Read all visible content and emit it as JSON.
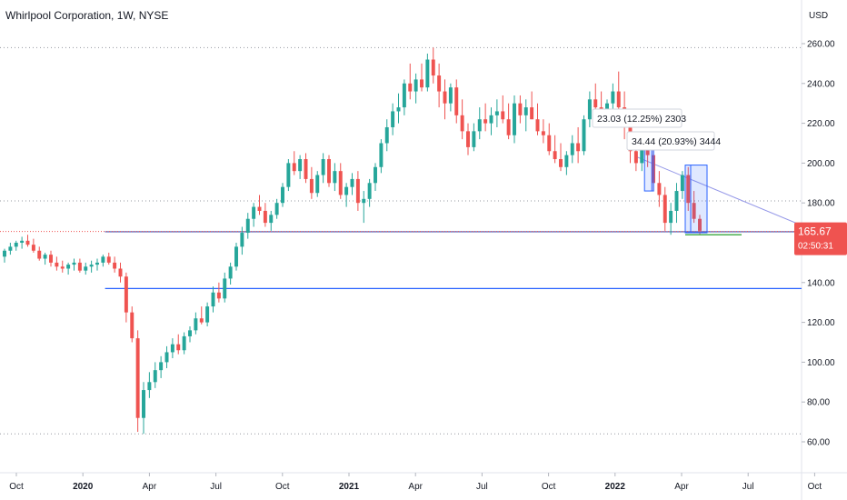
{
  "title": "Whirlpool Corporation, 1W, NYSE",
  "currency": "USD",
  "chart_data": {
    "type": "candlestick",
    "y_ticks": [
      "60.00",
      "80.00",
      "100.00",
      "120.00",
      "140.00",
      "160.00",
      "180.00",
      "200.00",
      "220.00",
      "240.00",
      "260.00"
    ],
    "x_ticks": [
      "Oct",
      "2020",
      "Apr",
      "Jul",
      "Oct",
      "2021",
      "Apr",
      "Jul",
      "Oct",
      "2022",
      "Apr",
      "Jul",
      "Oct"
    ],
    "ylim": [
      45,
      265
    ],
    "current_price": "165.67",
    "countdown": "02:50:31",
    "colors": {
      "up": "#26a69a",
      "down": "#ef5350",
      "support": "#3f51b5",
      "trend": "#9598e8",
      "measure": "#2962ff",
      "green_line": "#4caf50",
      "dotted": "#9598a1"
    },
    "horizontal_lines": [
      {
        "price": 165.5,
        "from": "2020-02",
        "color": "#3f51b5",
        "style": "solid"
      },
      {
        "price": 137,
        "from": "2020-02",
        "color": "#2962ff",
        "style": "solid"
      },
      {
        "price": 258,
        "style": "dotted"
      },
      {
        "price": 181,
        "style": "dotted"
      },
      {
        "price": 64,
        "style": "dotted"
      }
    ],
    "trend_line": {
      "from": {
        "date": "2022-02",
        "price": 203
      },
      "to": {
        "date": "2022-10",
        "price": 166
      }
    },
    "annotations": [
      {
        "text": "23.03 (12.25%) 2303"
      },
      {
        "text": "34.44 (20.93%) 3444"
      }
    ],
    "candles": [
      [
        153,
        157,
        150,
        156
      ],
      [
        156,
        160,
        154,
        158
      ],
      [
        158,
        161,
        156,
        160
      ],
      [
        160,
        163,
        157,
        161
      ],
      [
        161,
        164,
        158,
        159
      ],
      [
        159,
        162,
        155,
        156
      ],
      [
        156,
        158,
        151,
        152
      ],
      [
        152,
        155,
        149,
        154
      ],
      [
        154,
        156,
        148,
        150
      ],
      [
        150,
        153,
        146,
        148
      ],
      [
        148,
        151,
        145,
        147
      ],
      [
        147,
        150,
        144,
        149
      ],
      [
        149,
        152,
        146,
        150
      ],
      [
        150,
        152,
        145,
        146
      ],
      [
        146,
        150,
        144,
        148
      ],
      [
        148,
        151,
        145,
        149
      ],
      [
        149,
        152,
        146,
        150
      ],
      [
        150,
        154,
        148,
        153
      ],
      [
        153,
        155,
        149,
        150
      ],
      [
        150,
        153,
        145,
        147
      ],
      [
        147,
        150,
        140,
        143
      ],
      [
        143,
        145,
        120,
        125
      ],
      [
        125,
        128,
        110,
        112
      ],
      [
        112,
        116,
        65,
        72
      ],
      [
        72,
        90,
        64,
        86
      ],
      [
        86,
        95,
        82,
        90
      ],
      [
        90,
        100,
        87,
        96
      ],
      [
        96,
        103,
        92,
        100
      ],
      [
        100,
        108,
        97,
        105
      ],
      [
        105,
        112,
        102,
        109
      ],
      [
        109,
        114,
        104,
        106
      ],
      [
        106,
        115,
        104,
        113
      ],
      [
        113,
        118,
        110,
        116
      ],
      [
        116,
        125,
        114,
        122
      ],
      [
        122,
        128,
        119,
        120
      ],
      [
        120,
        130,
        118,
        128
      ],
      [
        128,
        138,
        125,
        135
      ],
      [
        135,
        140,
        130,
        132
      ],
      [
        132,
        145,
        130,
        142
      ],
      [
        142,
        150,
        139,
        148
      ],
      [
        148,
        160,
        146,
        158
      ],
      [
        158,
        168,
        154,
        165
      ],
      [
        165,
        175,
        162,
        172
      ],
      [
        172,
        180,
        168,
        178
      ],
      [
        178,
        184,
        174,
        176
      ],
      [
        176,
        180,
        168,
        170
      ],
      [
        170,
        176,
        166,
        174
      ],
      [
        174,
        182,
        172,
        180
      ],
      [
        180,
        190,
        178,
        188
      ],
      [
        188,
        202,
        186,
        200
      ],
      [
        200,
        206,
        194,
        196
      ],
      [
        196,
        204,
        192,
        202
      ],
      [
        202,
        205,
        190,
        192
      ],
      [
        192,
        198,
        182,
        185
      ],
      [
        185,
        196,
        183,
        194
      ],
      [
        194,
        205,
        190,
        202
      ],
      [
        202,
        204,
        188,
        190
      ],
      [
        190,
        200,
        186,
        196
      ],
      [
        196,
        200,
        182,
        184
      ],
      [
        184,
        190,
        178,
        188
      ],
      [
        188,
        195,
        184,
        192
      ],
      [
        192,
        196,
        176,
        180
      ],
      [
        180,
        186,
        170,
        182
      ],
      [
        182,
        192,
        178,
        190
      ],
      [
        190,
        200,
        186,
        198
      ],
      [
        198,
        212,
        195,
        210
      ],
      [
        210,
        222,
        206,
        218
      ],
      [
        218,
        230,
        214,
        226
      ],
      [
        226,
        235,
        220,
        228
      ],
      [
        228,
        242,
        224,
        240
      ],
      [
        240,
        250,
        232,
        236
      ],
      [
        236,
        245,
        230,
        242
      ],
      [
        242,
        250,
        236,
        238
      ],
      [
        238,
        255,
        236,
        252
      ],
      [
        252,
        258,
        240,
        244
      ],
      [
        244,
        250,
        228,
        236
      ],
      [
        236,
        242,
        222,
        230
      ],
      [
        230,
        240,
        226,
        238
      ],
      [
        238,
        242,
        220,
        224
      ],
      [
        224,
        232,
        212,
        216
      ],
      [
        216,
        220,
        204,
        208
      ],
      [
        208,
        220,
        206,
        216
      ],
      [
        216,
        228,
        212,
        222
      ],
      [
        222,
        230,
        216,
        220
      ],
      [
        220,
        228,
        214,
        224
      ],
      [
        224,
        232,
        218,
        226
      ],
      [
        226,
        234,
        220,
        222
      ],
      [
        222,
        230,
        212,
        214
      ],
      [
        214,
        234,
        210,
        230
      ],
      [
        230,
        234,
        220,
        224
      ],
      [
        224,
        232,
        216,
        228
      ],
      [
        228,
        236,
        222,
        222
      ],
      [
        222,
        230,
        214,
        216
      ],
      [
        216,
        222,
        210,
        214
      ],
      [
        214,
        220,
        204,
        206
      ],
      [
        206,
        214,
        200,
        202
      ],
      [
        202,
        210,
        196,
        198
      ],
      [
        198,
        206,
        194,
        204
      ],
      [
        204,
        214,
        200,
        210
      ],
      [
        210,
        218,
        200,
        206
      ],
      [
        206,
        224,
        204,
        222
      ],
      [
        222,
        236,
        218,
        232
      ],
      [
        232,
        240,
        224,
        228
      ],
      [
        228,
        236,
        222,
        226
      ],
      [
        226,
        232,
        218,
        230
      ],
      [
        230,
        240,
        224,
        236
      ],
      [
        236,
        246,
        220,
        228
      ],
      [
        228,
        236,
        212,
        218
      ],
      [
        218,
        222,
        200,
        206
      ],
      [
        206,
        212,
        196,
        200
      ],
      [
        200,
        212,
        196,
        208
      ],
      [
        208,
        214,
        198,
        204
      ],
      [
        204,
        208,
        186,
        190
      ],
      [
        190,
        196,
        178,
        184
      ],
      [
        184,
        188,
        166,
        170
      ],
      [
        170,
        180,
        164,
        176
      ],
      [
        176,
        190,
        170,
        186
      ],
      [
        186,
        196,
        182,
        194
      ],
      [
        194,
        198,
        176,
        180
      ],
      [
        180,
        186,
        170,
        172
      ],
      [
        172,
        174,
        164,
        166
      ]
    ]
  }
}
